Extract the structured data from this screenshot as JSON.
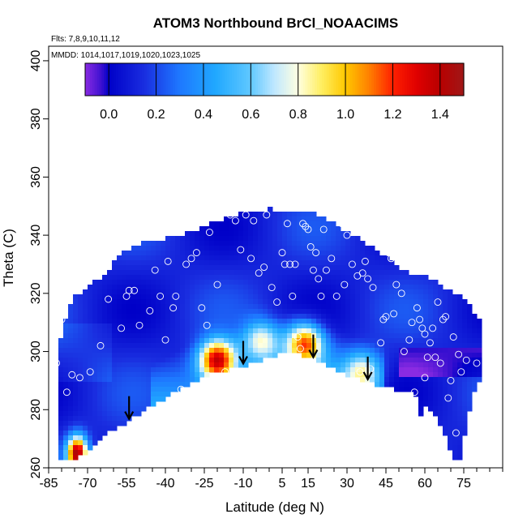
{
  "chart_data": {
    "type": "heatmap",
    "title": "ATOM3 Northbound BrCl_NOAACIMS",
    "flights_label": "Flts: 7,8,9,10,11,12",
    "dates_label": "MMDD: 1014,1017,1019,1020,1023,1025",
    "xlabel": "Latitude (deg N)",
    "ylabel": "Theta (C)",
    "xlim": [
      -85,
      90
    ],
    "ylim": [
      260,
      405
    ],
    "x_ticks": [
      -85,
      -70,
      -55,
      -40,
      -25,
      -10,
      5,
      15,
      30,
      45,
      60,
      75
    ],
    "y_ticks": [
      260,
      280,
      300,
      320,
      340,
      360,
      380,
      400
    ],
    "colorbar": {
      "ticks": [
        0.0,
        0.2,
        0.4,
        0.6,
        0.8,
        1.0,
        1.2,
        1.4
      ],
      "tick_labels": [
        "0.0",
        "0.2",
        "0.4",
        "0.6",
        "0.8",
        "1.0",
        "1.2",
        "1.4"
      ],
      "min": -0.1,
      "max": 1.5,
      "stops": [
        {
          "v": -0.1,
          "c": "#8a2be2"
        },
        {
          "v": -0.03,
          "c": "#3a10d0"
        },
        {
          "v": 0.0,
          "c": "#0000c8"
        },
        {
          "v": 0.15,
          "c": "#1a2ee0"
        },
        {
          "v": 0.3,
          "c": "#1e78ff"
        },
        {
          "v": 0.45,
          "c": "#20a8ff"
        },
        {
          "v": 0.6,
          "c": "#60c8ff"
        },
        {
          "v": 0.7,
          "c": "#c0e8ff"
        },
        {
          "v": 0.8,
          "c": "#ffffe0"
        },
        {
          "v": 0.9,
          "c": "#ffee60"
        },
        {
          "v": 1.0,
          "c": "#ffc800"
        },
        {
          "v": 1.1,
          "c": "#ff8000"
        },
        {
          "v": 1.2,
          "c": "#ff2000"
        },
        {
          "v": 1.3,
          "c": "#e00000"
        },
        {
          "v": 1.4,
          "c": "#b80000"
        },
        {
          "v": 1.5,
          "c": "#a01818"
        }
      ]
    },
    "grid": false,
    "arrow_latitudes": [
      -54,
      -10,
      17,
      38
    ],
    "hotspots": [
      {
        "lat": -74,
        "theta": 265,
        "value": 1.32
      },
      {
        "lat": -20,
        "theta": 297,
        "value": 1.12
      },
      {
        "lat": 14,
        "theta": 303,
        "value": 0.92
      },
      {
        "lat": -3,
        "theta": 304,
        "value": 0.55
      },
      {
        "lat": 36,
        "theta": 293,
        "value": 0.55
      }
    ],
    "points": [
      [
        -82,
        296
      ],
      [
        -80,
        311
      ],
      [
        -78,
        286
      ],
      [
        -76,
        292
      ],
      [
        -73,
        291
      ],
      [
        -71,
        263
      ],
      [
        -69,
        293
      ],
      [
        -65,
        302
      ],
      [
        -62,
        318
      ],
      [
        -57,
        308
      ],
      [
        -55,
        319
      ],
      [
        -54,
        321
      ],
      [
        -52,
        321
      ],
      [
        -50,
        309
      ],
      [
        -46,
        314
      ],
      [
        -44,
        328
      ],
      [
        -42,
        319
      ],
      [
        -40,
        304
      ],
      [
        -39,
        331
      ],
      [
        -37,
        315
      ],
      [
        -36,
        319
      ],
      [
        -34,
        287
      ],
      [
        -32,
        330
      ],
      [
        -30,
        332
      ],
      [
        -28,
        334
      ],
      [
        -26,
        315
      ],
      [
        -24,
        309
      ],
      [
        -23,
        341
      ],
      [
        -20,
        323
      ],
      [
        -17,
        293
      ],
      [
        -15,
        347
      ],
      [
        -14,
        349
      ],
      [
        -13,
        345
      ],
      [
        -11,
        335
      ],
      [
        -9,
        347
      ],
      [
        -7,
        332
      ],
      [
        -6,
        345
      ],
      [
        -4,
        327
      ],
      [
        -2,
        329
      ],
      [
        -1,
        347
      ],
      [
        1,
        322
      ],
      [
        3,
        317
      ],
      [
        5,
        334
      ],
      [
        6,
        330
      ],
      [
        7,
        344
      ],
      [
        8,
        330
      ],
      [
        9,
        319
      ],
      [
        10,
        330
      ],
      [
        11,
        305
      ],
      [
        12,
        301
      ],
      [
        13,
        344
      ],
      [
        14,
        343
      ],
      [
        15,
        342
      ],
      [
        16,
        336
      ],
      [
        17,
        328
      ],
      [
        18,
        334
      ],
      [
        19,
        325
      ],
      [
        20,
        319
      ],
      [
        21,
        342
      ],
      [
        22,
        328
      ],
      [
        24,
        332
      ],
      [
        26,
        319
      ],
      [
        28,
        344
      ],
      [
        29,
        323
      ],
      [
        30,
        340
      ],
      [
        32,
        330
      ],
      [
        34,
        326
      ],
      [
        35,
        293
      ],
      [
        36,
        327
      ],
      [
        37,
        331
      ],
      [
        38,
        325
      ],
      [
        39,
        294
      ],
      [
        40,
        322
      ],
      [
        42,
        340
      ],
      [
        43,
        303
      ],
      [
        44,
        311
      ],
      [
        45,
        312
      ],
      [
        46,
        334
      ],
      [
        47,
        332
      ],
      [
        48,
        313
      ],
      [
        49,
        323
      ],
      [
        51,
        320
      ],
      [
        52,
        300
      ],
      [
        53,
        330
      ],
      [
        54,
        304
      ],
      [
        55,
        333
      ],
      [
        55,
        310
      ],
      [
        56,
        286
      ],
      [
        57,
        315
      ],
      [
        58,
        311
      ],
      [
        59,
        308
      ],
      [
        60,
        306
      ],
      [
        60,
        291
      ],
      [
        61,
        298
      ],
      [
        62,
        303
      ],
      [
        63,
        308
      ],
      [
        64,
        298
      ],
      [
        65,
        317
      ],
      [
        66,
        296
      ],
      [
        67,
        311
      ],
      [
        68,
        312
      ],
      [
        69,
        284
      ],
      [
        70,
        290
      ],
      [
        71,
        305
      ],
      [
        72,
        272
      ],
      [
        73,
        299
      ],
      [
        74,
        293
      ],
      [
        76,
        297
      ],
      [
        78,
        318
      ],
      [
        80,
        296
      ]
    ]
  }
}
